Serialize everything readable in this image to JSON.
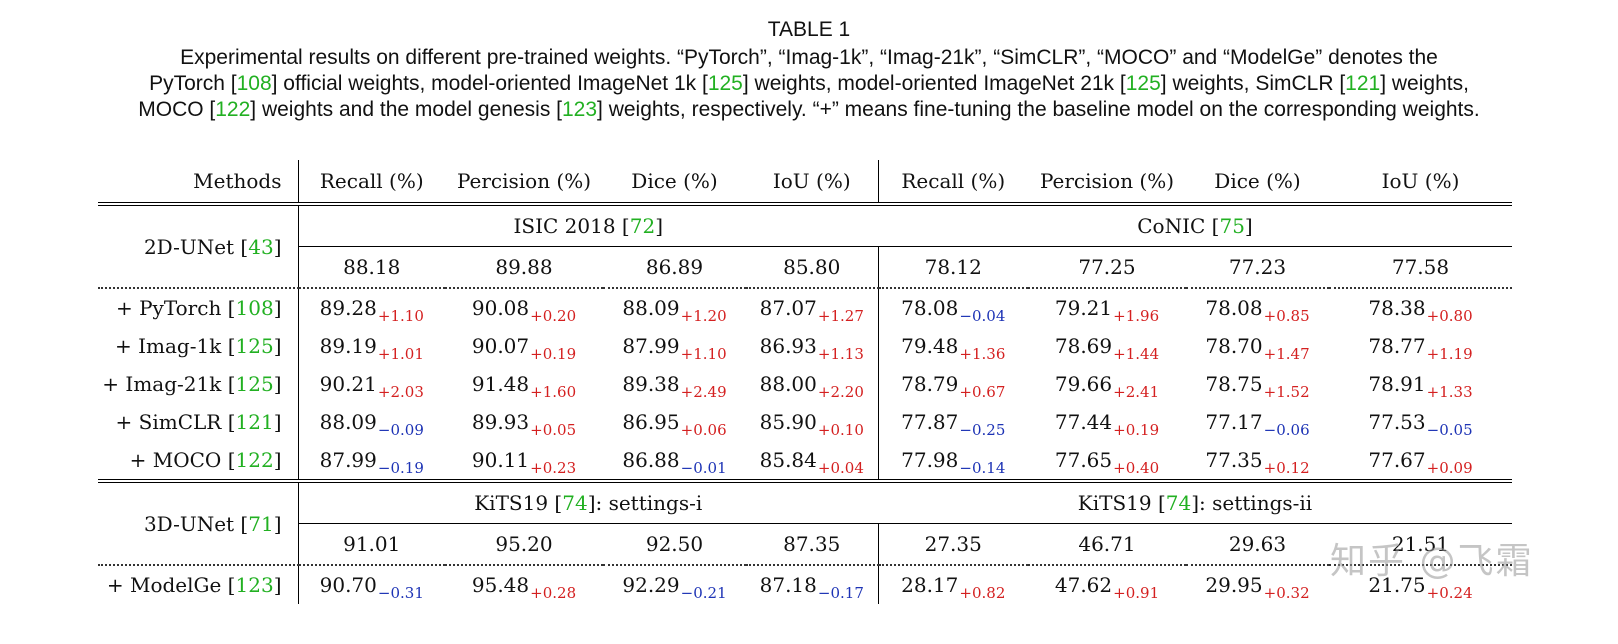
{
  "caption": {
    "title": "TABLE 1",
    "line1": "Experimental results on different pre-trained weights. “PyTorch”, “Imag-1k”, “Imag-21k”, “SimCLR”, “MOCO” and “ModelGe” denotes the",
    "line2_a": "PyTorch [",
    "line2_c1": "108",
    "line2_b": "] official weights, model-oriented ImageNet 1k [",
    "line2_c2": "125",
    "line2_c": "] weights, model-oriented ImageNet 21k [",
    "line2_c3": "125",
    "line2_d": "] weights, SimCLR [",
    "line2_c4": "121",
    "line2_e": "] weights,",
    "line3_a": "MOCO [",
    "line3_c1": "122",
    "line3_b": "] weights and the model genesis [",
    "line3_c2": "123",
    "line3_c": "] weights, respectively. “+” means fine-tuning the baseline model on the corresponding weights."
  },
  "header": {
    "methods": "Methods",
    "cols": [
      "Recall (%)",
      "Percision (%)",
      "Dice (%)",
      "IoU (%)",
      "Recall (%)",
      "Percision (%)",
      "Dice (%)",
      "IoU (%)"
    ]
  },
  "block1": {
    "method": "2D-UNet [",
    "cite": "43",
    "ds1": "ISIC 2018 [",
    "ds1_cite": "72",
    "ds2": "CoNIC [",
    "ds2_cite": "75",
    "baseline": [
      "88.18",
      "89.88",
      "86.89",
      "85.80",
      "78.12",
      "77.25",
      "77.23",
      "77.58"
    ],
    "rows": [
      {
        "name": "+ PyTorch [",
        "cite": "108",
        "vals": [
          "89.28",
          "90.08",
          "88.09",
          "87.07",
          "78.08",
          "79.21",
          "78.08",
          "78.38"
        ],
        "deltas": [
          "+1.10",
          "+0.20",
          "+1.20",
          "+1.27",
          "−0.04",
          "+1.96",
          "+0.85",
          "+0.80"
        ]
      },
      {
        "name": "+ Imag-1k [",
        "cite": "125",
        "vals": [
          "89.19",
          "90.07",
          "87.99",
          "86.93",
          "79.48",
          "78.69",
          "78.70",
          "78.77"
        ],
        "deltas": [
          "+1.01",
          "+0.19",
          "+1.10",
          "+1.13",
          "+1.36",
          "+1.44",
          "+1.47",
          "+1.19"
        ]
      },
      {
        "name": "+ Imag-21k [",
        "cite": "125",
        "vals": [
          "90.21",
          "91.48",
          "89.38",
          "88.00",
          "78.79",
          "79.66",
          "78.75",
          "78.91"
        ],
        "deltas": [
          "+2.03",
          "+1.60",
          "+2.49",
          "+2.20",
          "+0.67",
          "+2.41",
          "+1.52",
          "+1.33"
        ]
      },
      {
        "name": "+ SimCLR [",
        "cite": "121",
        "vals": [
          "88.09",
          "89.93",
          "86.95",
          "85.90",
          "77.87",
          "77.44",
          "77.17",
          "77.53"
        ],
        "deltas": [
          "−0.09",
          "+0.05",
          "+0.06",
          "+0.10",
          "−0.25",
          "+0.19",
          "−0.06",
          "−0.05"
        ]
      },
      {
        "name": "+ MOCO [",
        "cite": "122",
        "vals": [
          "87.99",
          "90.11",
          "86.88",
          "85.84",
          "77.98",
          "77.65",
          "77.35",
          "77.67"
        ],
        "deltas": [
          "−0.19",
          "+0.23",
          "−0.01",
          "+0.04",
          "−0.14",
          "+0.40",
          "+0.12",
          "+0.09"
        ]
      }
    ]
  },
  "block2": {
    "method": "3D-UNet [",
    "cite": "71",
    "ds1": "KiTS19 [",
    "ds1_cite": "74",
    "ds1_suffix": "]: settings-i",
    "ds2": "KiTS19 [",
    "ds2_cite": "74",
    "ds2_suffix": "]: settings-ii",
    "baseline": [
      "91.01",
      "95.20",
      "92.50",
      "87.35",
      "27.35",
      "46.71",
      "29.63",
      "21.51"
    ],
    "rows": [
      {
        "name": "+ ModelGe [",
        "cite": "123",
        "vals": [
          "90.70",
          "95.48",
          "92.29",
          "87.18",
          "28.17",
          "47.62",
          "29.95",
          "21.75"
        ],
        "deltas": [
          "−0.31",
          "+0.28",
          "−0.21",
          "−0.17",
          "+0.82",
          "+0.91",
          "+0.32",
          "+0.24"
        ]
      }
    ]
  },
  "watermark": "知乎 @飞霜",
  "colors": {
    "positive": "#d42020",
    "negative": "#1d33b5",
    "citation": "#22b022"
  }
}
